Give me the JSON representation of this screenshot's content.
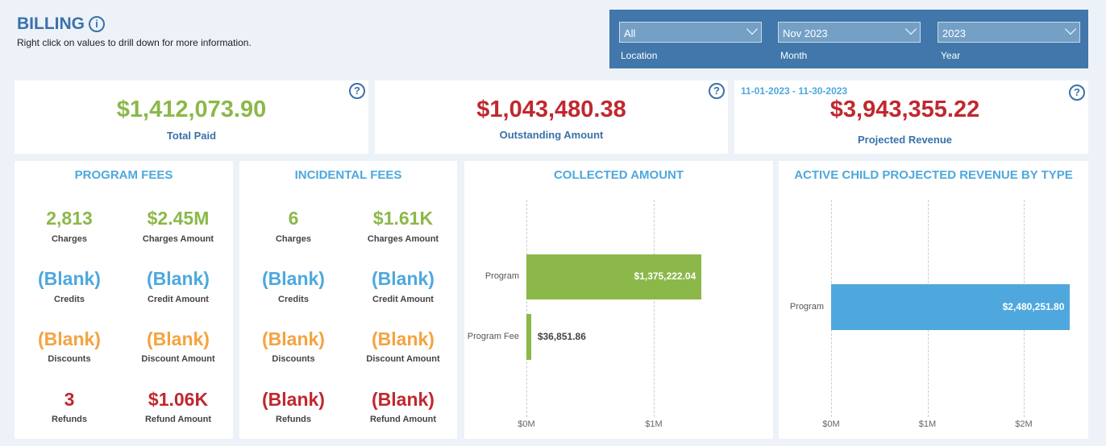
{
  "header": {
    "title": "BILLING",
    "subtitle": "Right click on values to drill down for more information."
  },
  "filters": [
    {
      "value": "All",
      "label": "Location"
    },
    {
      "value": "Nov 2023",
      "label": "Month"
    },
    {
      "value": "2023",
      "label": "Year"
    }
  ],
  "kpis": {
    "total_paid": {
      "value": "$1,412,073.90",
      "label": "Total Paid"
    },
    "outstanding": {
      "value": "$1,043,480.38",
      "label": "Outstanding Amount"
    },
    "projected": {
      "date_range": "11-01-2023 - 11-30-2023",
      "value": "$3,943,355.22",
      "label": "Projected Revenue"
    }
  },
  "program_fees": {
    "title": "PROGRAM FEES",
    "metrics": [
      {
        "value": "2,813",
        "label": "Charges"
      },
      {
        "value": "$2.45M",
        "label": "Charges Amount"
      },
      {
        "value": "(Blank)",
        "label": "Credits"
      },
      {
        "value": "(Blank)",
        "label": "Credit Amount"
      },
      {
        "value": "(Blank)",
        "label": "Discounts"
      },
      {
        "value": "(Blank)",
        "label": "Discount Amount"
      },
      {
        "value": "3",
        "label": "Refunds"
      },
      {
        "value": "$1.06K",
        "label": "Refund Amount"
      }
    ]
  },
  "incidental_fees": {
    "title": "INCIDENTAL FEES",
    "metrics": [
      {
        "value": "6",
        "label": "Charges"
      },
      {
        "value": "$1.61K",
        "label": "Charges Amount"
      },
      {
        "value": "(Blank)",
        "label": "Credits"
      },
      {
        "value": "(Blank)",
        "label": "Credit Amount"
      },
      {
        "value": "(Blank)",
        "label": "Discounts"
      },
      {
        "value": "(Blank)",
        "label": "Discount Amount"
      },
      {
        "value": "(Blank)",
        "label": "Refunds"
      },
      {
        "value": "(Blank)",
        "label": "Refund Amount"
      }
    ]
  },
  "colors": {
    "green": "#8cb84a",
    "blue": "#4ea8de",
    "orange": "#f4a340",
    "red": "#c0282f",
    "filter_bg": "#4177aa"
  },
  "chart_data": [
    {
      "type": "bar",
      "orientation": "horizontal",
      "title": "COLLECTED AMOUNT",
      "categories": [
        "Program",
        "Program Fee"
      ],
      "values": [
        1375222.04,
        36851.86
      ],
      "data_labels": [
        "$1,375,222.04",
        "$36,851.86"
      ],
      "xticks": [
        "$0M",
        "$1M"
      ],
      "xlim": [
        0,
        1.6
      ],
      "grid": true,
      "color": "#8cb84a"
    },
    {
      "type": "bar",
      "orientation": "horizontal",
      "title": "ACTIVE CHILD PROJECTED REVENUE BY TYPE",
      "categories": [
        "Program"
      ],
      "values": [
        2480251.8
      ],
      "data_labels": [
        "$2,480,251.80"
      ],
      "xticks": [
        "$0M",
        "$1M",
        "$2M"
      ],
      "xlim": [
        0,
        2.65
      ],
      "grid": true,
      "color": "#4ea8de"
    }
  ]
}
